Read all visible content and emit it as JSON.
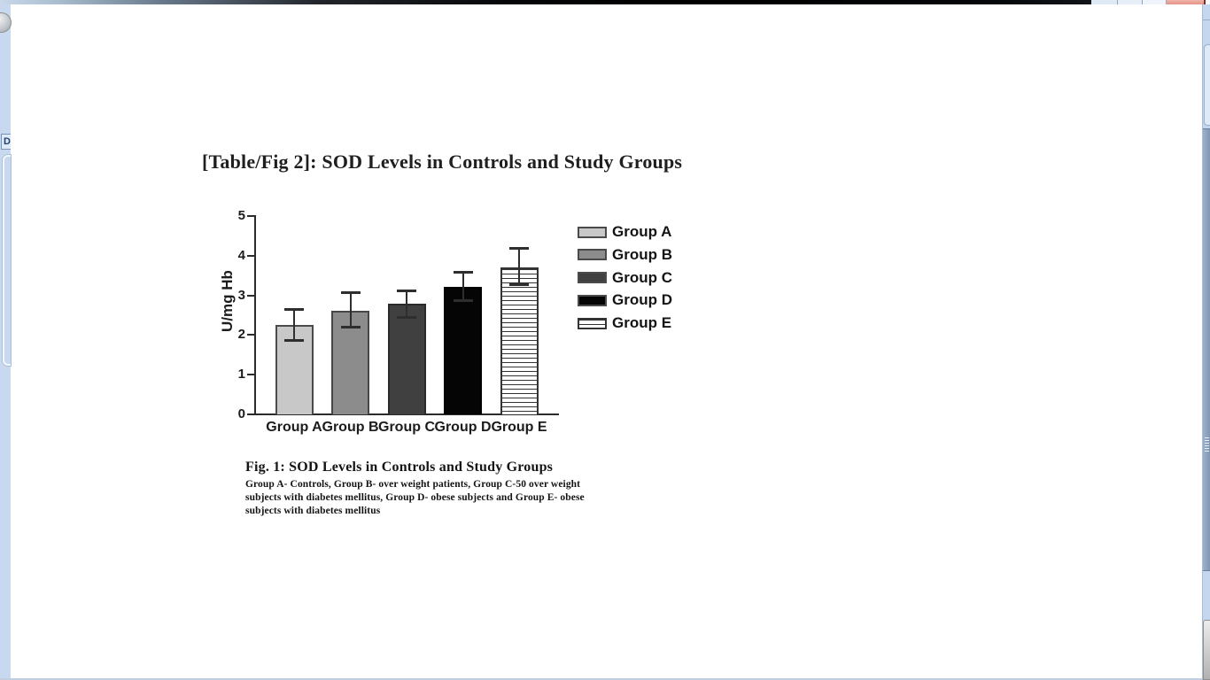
{
  "page": {
    "title": "[Table/Fig 2]: SOD Levels in Controls and Study Groups"
  },
  "figure": {
    "caption_title": "Fig. 1: SOD Levels in Controls and Study Groups",
    "caption_body": "Group A- Controls, Group B- over weight patients, Group C-50 over weight subjects with diabetes mellitus,  Group D- obese subjects and Group E- obese subjects with diabetes mellitus"
  },
  "chart_data": {
    "type": "bar",
    "title": "",
    "xlabel": "",
    "ylabel": "U/mg Hb",
    "ylim": [
      0,
      5
    ],
    "yticks": [
      0,
      1,
      2,
      3,
      4,
      5
    ],
    "grid": false,
    "legend_position": "right",
    "categories": [
      "Group A",
      "Group B",
      "Group C",
      "Group D",
      "Group E"
    ],
    "values": [
      2.25,
      2.62,
      2.78,
      3.22,
      3.7
    ],
    "error_low": [
      1.85,
      2.18,
      2.43,
      2.85,
      3.25
    ],
    "error_high": [
      2.65,
      3.07,
      3.13,
      3.6,
      4.2
    ],
    "bar_styles": [
      {
        "fill": "#c8c8c8",
        "border": "#4a4a4a",
        "pattern": "solid"
      },
      {
        "fill": "#8c8c8c",
        "border": "#464646",
        "pattern": "solid"
      },
      {
        "fill": "#404040",
        "border": "#2a2a2a",
        "pattern": "solid"
      },
      {
        "fill": "#050505",
        "border": "#000000",
        "pattern": "solid"
      },
      {
        "fill": "#ffffff",
        "border": "#333333",
        "pattern": "hlines"
      }
    ],
    "legend": [
      {
        "label": "Group A",
        "fill": "#c8c8c8",
        "pattern": "solid"
      },
      {
        "label": "Group B",
        "fill": "#8c8c8c",
        "pattern": "solid"
      },
      {
        "label": "Group C",
        "fill": "#404040",
        "pattern": "solid"
      },
      {
        "label": "Group D",
        "fill": "#050505",
        "pattern": "solid"
      },
      {
        "label": "Group E",
        "fill": "#ffffff",
        "pattern": "hlines"
      }
    ]
  },
  "chrome": {
    "left_fragment_label": "D",
    "accent_close_color": "#e19385",
    "scrollbar_color": "#7d93b1"
  }
}
